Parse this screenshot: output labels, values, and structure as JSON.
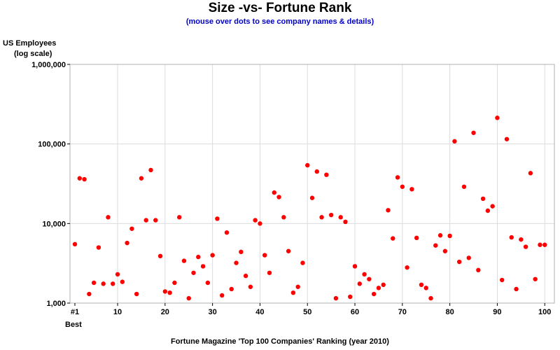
{
  "chart_data": {
    "type": "scatter",
    "title": "Size -vs- Fortune Rank",
    "subtitle": "(mouse over dots to see company names & details)",
    "ylabel_line1": "US Employees",
    "ylabel_line2": "(log scale)",
    "xlabel": "Fortune Magazine 'Top 100 Companies' Ranking (year 2010)",
    "x_subtitle": "Best",
    "x_scale": "linear",
    "y_scale": "log",
    "xlim": [
      1,
      101
    ],
    "ylim": [
      1000,
      1000000
    ],
    "x_ticks": [
      1,
      10,
      20,
      30,
      40,
      50,
      60,
      70,
      80,
      90,
      100
    ],
    "x_tick_labels": [
      "#1",
      "10",
      "20",
      "30",
      "40",
      "50",
      "60",
      "70",
      "80",
      "90",
      "100"
    ],
    "y_ticks": [
      1000,
      10000,
      100000,
      1000000
    ],
    "y_tick_labels": [
      "1,000",
      "10,000",
      "100,000",
      "1,000,000"
    ],
    "grid": true,
    "marker_color": "#ff0000",
    "x": [
      1,
      2,
      3,
      4,
      5,
      6,
      7,
      8,
      9,
      10,
      11,
      12,
      13,
      14,
      15,
      16,
      17,
      18,
      19,
      20,
      21,
      22,
      23,
      24,
      25,
      26,
      27,
      28,
      29,
      30,
      31,
      32,
      33,
      34,
      35,
      36,
      37,
      38,
      39,
      40,
      41,
      42,
      43,
      44,
      45,
      46,
      47,
      48,
      49,
      50,
      51,
      52,
      53,
      54,
      55,
      56,
      57,
      58,
      59,
      60,
      61,
      62,
      63,
      64,
      65,
      66,
      67,
      68,
      69,
      70,
      71,
      72,
      73,
      74,
      75,
      76,
      77,
      78,
      79,
      80,
      81,
      82,
      83,
      84,
      85,
      86,
      87,
      88,
      89,
      90,
      91,
      92,
      93,
      94,
      95,
      96,
      97,
      98,
      99,
      100
    ],
    "y": [
      5500,
      37000,
      36000,
      1300,
      1800,
      5000,
      1750,
      12000,
      1750,
      2300,
      1850,
      5700,
      8600,
      1300,
      37000,
      11000,
      47000,
      11000,
      3900,
      1400,
      1350,
      1800,
      12000,
      3400,
      1150,
      2400,
      3800,
      2900,
      1800,
      4000,
      11500,
      1250,
      7700,
      1500,
      3200,
      4400,
      2200,
      1600,
      11000,
      10000,
      4000,
      2400,
      24500,
      21500,
      12000,
      4500,
      1350,
      1600,
      3200,
      54000,
      21000,
      45000,
      12000,
      41000,
      12800,
      1150,
      12000,
      10500,
      1200,
      2900,
      1750,
      2300,
      2000,
      1300,
      1550,
      1700,
      14700,
      6500,
      38000,
      29000,
      2800,
      27000,
      6600,
      1700,
      1550,
      1150,
      5300,
      7100,
      4500,
      7000,
      108000,
      3300,
      29000,
      3700,
      138000,
      2600,
      20500,
      14500,
      16500,
      213000,
      1950,
      115000,
      6700,
      1500,
      6300,
      5100,
      43000,
      2000,
      5400,
      5400
    ]
  }
}
